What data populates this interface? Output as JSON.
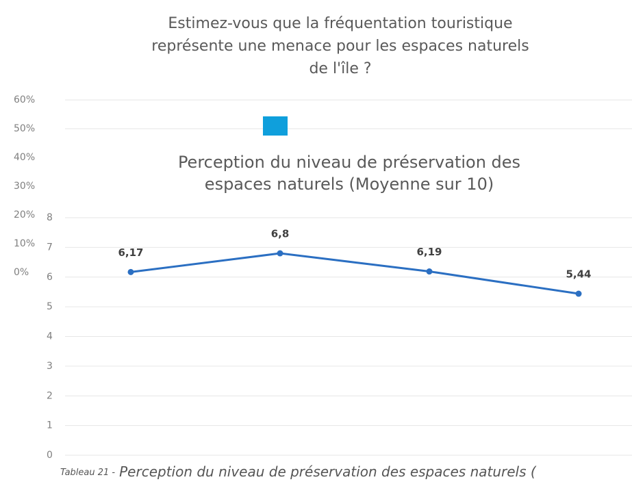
{
  "chart_data": [
    {
      "type": "bar",
      "title": [
        "Estimez-vous que la fréquentation touristique",
        "représente une menace pour les espaces naturels",
        "de l'île ?"
      ],
      "color": "#0f9fdc",
      "ylim": [
        0,
        60
      ],
      "yticks": [
        {
          "value": 0,
          "label": "0%"
        },
        {
          "value": 10,
          "label": "10%"
        },
        {
          "value": 20,
          "label": "20%"
        },
        {
          "value": 30,
          "label": "30%"
        },
        {
          "value": 40,
          "label": "40%"
        },
        {
          "value": 50,
          "label": "50%"
        },
        {
          "value": 60,
          "label": "60%"
        }
      ],
      "grid": true
    },
    {
      "type": "line",
      "title": [
        "Perception du niveau de préservation des",
        "espaces naturels (Moyenne sur 10)"
      ],
      "categories": [
        null,
        null,
        null,
        null
      ],
      "values": [
        6.17,
        6.8,
        6.19,
        5.44
      ],
      "value_labels": [
        "6,17",
        "6,8",
        "6,19",
        "5,44"
      ],
      "color": "#2b6fc2",
      "ylim": [
        0,
        8
      ],
      "yticks": [
        0,
        1,
        2,
        3,
        4,
        5,
        6,
        7,
        8
      ],
      "grid": true
    }
  ],
  "caption": {
    "label": "Tableau 21 -",
    "text": "Perception du niveau de préservation des espaces naturels ("
  }
}
